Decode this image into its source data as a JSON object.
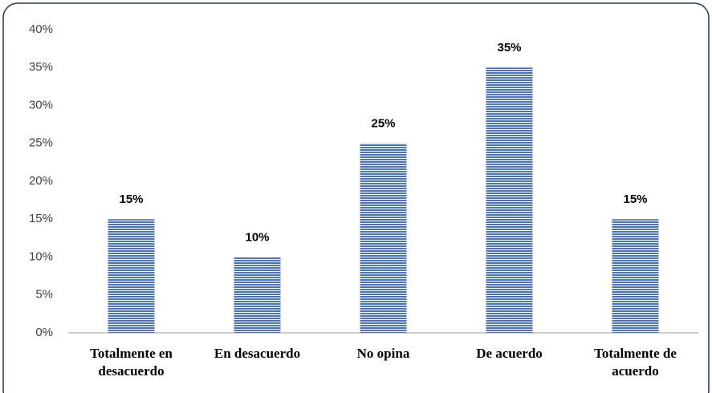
{
  "chart_data": {
    "type": "bar",
    "categories": [
      "Totalmente en desacuerdo",
      "En desacuerdo",
      "No opina",
      "De acuerdo",
      "Totalmente de acuerdo"
    ],
    "values": [
      15,
      10,
      25,
      35,
      15
    ],
    "value_labels": [
      "15%",
      "10%",
      "25%",
      "35%",
      "15%"
    ],
    "color": "#4a72c4",
    "ylim": [
      0,
      40
    ],
    "yticks": [
      {
        "value": 0,
        "label": "0%"
      },
      {
        "value": 5,
        "label": "5%"
      },
      {
        "value": 10,
        "label": "10%"
      },
      {
        "value": 15,
        "label": "15%"
      },
      {
        "value": 20,
        "label": "20%"
      },
      {
        "value": 25,
        "label": "25%"
      },
      {
        "value": 30,
        "label": "30%"
      },
      {
        "value": 35,
        "label": "35%"
      },
      {
        "value": 40,
        "label": "40%"
      }
    ],
    "grid": false
  }
}
